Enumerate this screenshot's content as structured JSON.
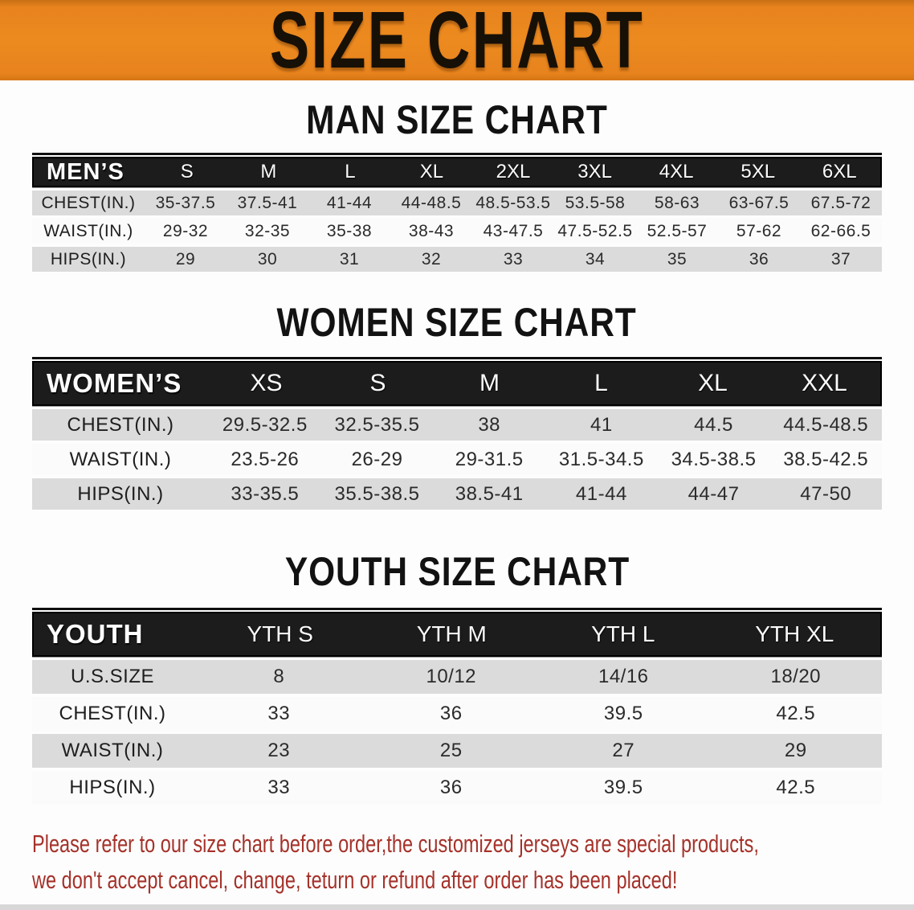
{
  "banner": {
    "title": "SIZE CHART",
    "bg_color": "#e8831d",
    "text_color": "#171007"
  },
  "colors": {
    "table_header_bg": "#1c1c1c",
    "row_shaded": "#dbdbdb",
    "row_plain": "#fbfbfb",
    "disclaimer_red": "#a5322a"
  },
  "sections": [
    {
      "id": "men",
      "title": "MAN SIZE CHART",
      "header_label": "MEN’S",
      "columns": [
        "S",
        "M",
        "L",
        "XL",
        "2XL",
        "3XL",
        "4XL",
        "5XL",
        "6XL"
      ],
      "rows": [
        {
          "label": "CHEST(IN.)",
          "values": [
            "35-37.5",
            "37.5-41",
            "41-44",
            "44-48.5",
            "48.5-53.5",
            "53.5-58",
            "58-63",
            "63-67.5",
            "67.5-72"
          ]
        },
        {
          "label": "WAIST(IN.)",
          "values": [
            "29-32",
            "32-35",
            "35-38",
            "38-43",
            "43-47.5",
            "47.5-52.5",
            "52.5-57",
            "57-62",
            "62-66.5"
          ]
        },
        {
          "label": "HIPS(IN.)",
          "values": [
            "29",
            "30",
            "31",
            "32",
            "33",
            "34",
            "35",
            "36",
            "37"
          ]
        }
      ]
    },
    {
      "id": "women",
      "title": "WOMEN SIZE CHART",
      "header_label": "WOMEN’S",
      "columns": [
        "XS",
        "S",
        "M",
        "L",
        "XL",
        "XXL"
      ],
      "rows": [
        {
          "label": "CHEST(IN.)",
          "values": [
            "29.5-32.5",
            "32.5-35.5",
            "38",
            "41",
            "44.5",
            "44.5-48.5"
          ]
        },
        {
          "label": "WAIST(IN.)",
          "values": [
            "23.5-26",
            "26-29",
            "29-31.5",
            "31.5-34.5",
            "34.5-38.5",
            "38.5-42.5"
          ]
        },
        {
          "label": "HIPS(IN.)",
          "values": [
            "33-35.5",
            "35.5-38.5",
            "38.5-41",
            "41-44",
            "44-47",
            "47-50"
          ]
        }
      ]
    },
    {
      "id": "youth",
      "title": "YOUTH SIZE CHART",
      "header_label": "YOUTH",
      "columns": [
        "YTH S",
        "YTH M",
        "YTH L",
        "YTH XL"
      ],
      "rows": [
        {
          "label": "U.S.SIZE",
          "values": [
            "8",
            "10/12",
            "14/16",
            "18/20"
          ]
        },
        {
          "label": "CHEST(IN.)",
          "values": [
            "33",
            "36",
            "39.5",
            "42.5"
          ]
        },
        {
          "label": "WAIST(IN.)",
          "values": [
            "23",
            "25",
            "27",
            "29"
          ]
        },
        {
          "label": "HIPS(IN.)",
          "values": [
            "33",
            "36",
            "39.5",
            "42.5"
          ]
        }
      ]
    }
  ],
  "disclaimer": {
    "line1": "Please refer to our size chart before order,the customized jerseys are special products,",
    "line2": "we don't accept cancel, change, teturn or refund after order has been placed!"
  }
}
